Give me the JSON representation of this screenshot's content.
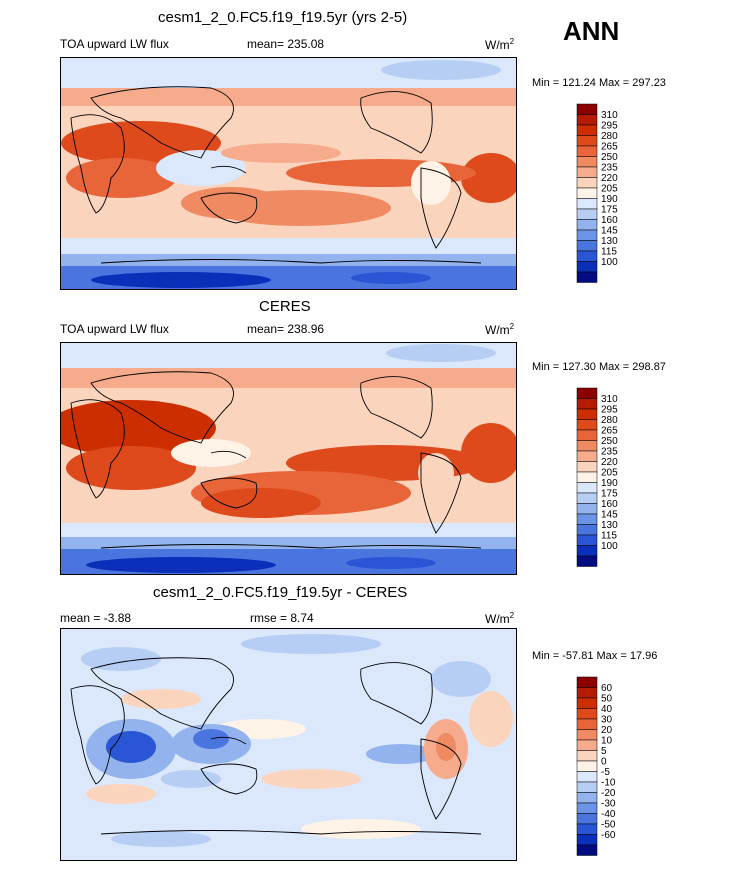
{
  "annotation": "ANN",
  "panels": [
    {
      "title": "cesm1_2_0.FC5.f19_f19.5yr (yrs 2-5)",
      "left_label": "TOA upward LW flux",
      "center_label": "mean= 235.08",
      "units": "W/m",
      "units_exp": "2",
      "minmax": "Min = 121.24 Max = 297.23",
      "colorbar": {
        "levels": [
          "310",
          "295",
          "280",
          "265",
          "250",
          "235",
          "220",
          "205",
          "190",
          "175",
          "160",
          "145",
          "130",
          "115",
          "100"
        ],
        "colors": [
          "#8b0000",
          "#b31c00",
          "#cc2e00",
          "#de4a1c",
          "#e8653a",
          "#ef8a62",
          "#f5ab8c",
          "#fbd4bd",
          "#fff2e6",
          "#dbe8fb",
          "#b7cef4",
          "#92b3ee",
          "#6b93e6",
          "#4a74de",
          "#2a55d4",
          "#0a2fb8",
          "#000c80"
        ]
      }
    },
    {
      "title": "CERES",
      "left_label": "TOA upward LW flux",
      "center_label": "mean= 238.96",
      "units": "W/m",
      "units_exp": "2",
      "minmax": "Min = 127.30 Max = 298.87",
      "colorbar": {
        "levels": [
          "310",
          "295",
          "280",
          "265",
          "250",
          "235",
          "220",
          "205",
          "190",
          "175",
          "160",
          "145",
          "130",
          "115",
          "100"
        ],
        "colors": [
          "#8b0000",
          "#b31c00",
          "#cc2e00",
          "#de4a1c",
          "#e8653a",
          "#ef8a62",
          "#f5ab8c",
          "#fbd4bd",
          "#fff2e6",
          "#dbe8fb",
          "#b7cef4",
          "#92b3ee",
          "#6b93e6",
          "#4a74de",
          "#2a55d4",
          "#0a2fb8",
          "#000c80"
        ]
      }
    },
    {
      "title": "cesm1_2_0.FC5.f19_f19.5yr - CERES",
      "left_label": "mean =  -3.88",
      "center_label": "rmse =   8.74",
      "units": "W/m",
      "units_exp": "2",
      "minmax": "Min = -57.81 Max =  17.96",
      "colorbar": {
        "levels": [
          "60",
          "50",
          "40",
          "30",
          "20",
          "10",
          "5",
          "0",
          "-5",
          "-10",
          "-20",
          "-30",
          "-40",
          "-50",
          "-60"
        ],
        "colors": [
          "#8b0000",
          "#b31c00",
          "#cc2e00",
          "#de4a1c",
          "#e8653a",
          "#ef8a62",
          "#f5ab8c",
          "#fbd4bd",
          "#fff2e6",
          "#dbe8fb",
          "#b7cef4",
          "#92b3ee",
          "#6b93e6",
          "#4a74de",
          "#2a55d4",
          "#0a2fb8",
          "#000c80"
        ]
      }
    }
  ],
  "chart_data": [
    {
      "type": "heatmap",
      "title": "cesm1_2_0.FC5.f19_f19.5yr (yrs 2-5)",
      "variable": "TOA upward LW flux",
      "units": "W/m2",
      "mean": 235.08,
      "min": 121.24,
      "max": 297.23,
      "contour_levels": [
        100,
        115,
        130,
        145,
        160,
        175,
        190,
        205,
        220,
        235,
        250,
        265,
        280,
        295,
        310
      ]
    },
    {
      "type": "heatmap",
      "title": "CERES",
      "variable": "TOA upward LW flux",
      "units": "W/m2",
      "mean": 238.96,
      "min": 127.3,
      "max": 298.87,
      "contour_levels": [
        100,
        115,
        130,
        145,
        160,
        175,
        190,
        205,
        220,
        235,
        250,
        265,
        280,
        295,
        310
      ]
    },
    {
      "type": "heatmap",
      "title": "cesm1_2_0.FC5.f19_f19.5yr - CERES",
      "units": "W/m2",
      "mean": -3.88,
      "rmse": 8.74,
      "min": -57.81,
      "max": 17.96,
      "contour_levels": [
        -60,
        -50,
        -40,
        -30,
        -20,
        -10,
        -5,
        0,
        5,
        10,
        20,
        30,
        40,
        50,
        60
      ]
    }
  ]
}
